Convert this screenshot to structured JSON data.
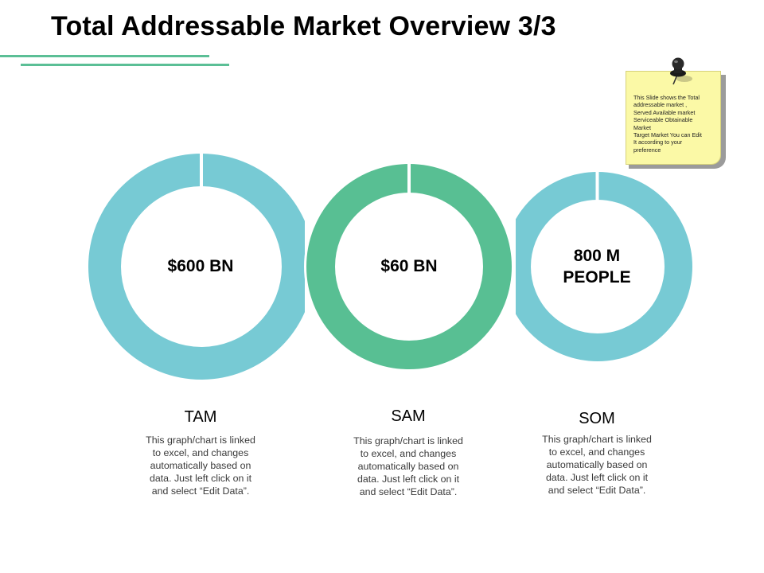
{
  "title": "Total Addressable Market Overview 3/3",
  "colors": {
    "rule": "#5bbf96",
    "teal": "#77cad4",
    "green": "#58bf93",
    "note_bg": "#fbf9a6"
  },
  "circles": [
    {
      "key": "tam",
      "value": "$600 BN",
      "label": "TAM",
      "description": "This graph/chart is linked\nto excel, and changes\nautomatically based on\ndata. Just left click on it\nand select “Edit Data”.",
      "color": "teal"
    },
    {
      "key": "sam",
      "value": "$60 BN",
      "label": "SAM",
      "description": "This graph/chart is linked\nto excel, and changes\nautomatically based on\ndata. Just left click on it\nand select “Edit Data”.",
      "color": "green"
    },
    {
      "key": "som",
      "value": "800 M\nPEOPLE",
      "label": "SOM",
      "description": "This graph/chart is linked\nto excel, and changes\nautomatically based on\ndata. Just left click on it\nand select “Edit Data”.",
      "color": "teal"
    }
  ],
  "sticky_note": {
    "text": "This Slide shows the Total\naddressable market ,\nServed Available market\nServiceable Obtainable\nMarket\nTarget Market You can Edit\nIt according to your\npreference",
    "icon": "pushpin-icon"
  }
}
